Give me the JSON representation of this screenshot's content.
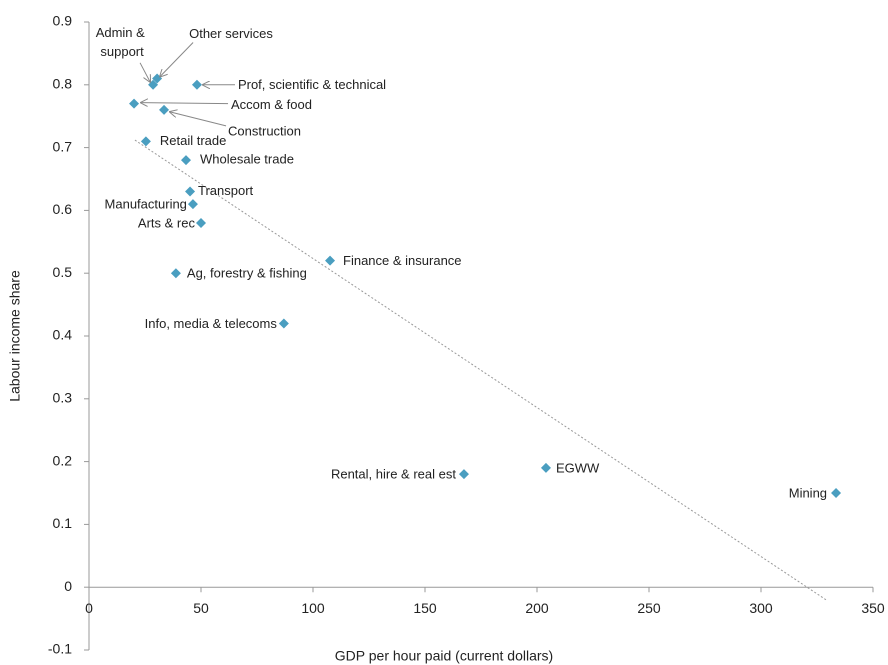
{
  "chart_data": {
    "type": "scatter",
    "x_label": "GDP per hour paid (current dollars)",
    "y_label": "Labour income share",
    "labels": [
      "Admin &\nsupport",
      "Other services",
      "Prof, scientific & technical",
      "Accom & food",
      "Construction",
      "Retail trade",
      "Wholesale trade",
      "Transport",
      "Manufacturing",
      "Arts & rec",
      "Ag, forestry & fishing",
      "Finance & insurance",
      "Info, media & telecoms",
      "Rental, hire & real est",
      "EGWW",
      "Mining"
    ],
    "x": [
      28.6,
      30.4,
      48.2,
      20.1,
      33.5,
      25.4,
      43.3,
      45.1,
      46.4,
      50,
      38.8,
      107.6,
      87,
      167.4,
      204,
      333.5
    ],
    "y": [
      0.8,
      0.81,
      0.8,
      0.77,
      0.76,
      0.71,
      0.68,
      0.63,
      0.61,
      0.58,
      0.5,
      0.52,
      0.42,
      0.18,
      0.19,
      0.15
    ],
    "color": "#4a9ec0",
    "trendline": {
      "x": [
        20.5,
        329
      ],
      "y": [
        0.712,
        -0.02
      ]
    },
    "xlim": [
      0,
      350
    ],
    "xticks": [
      0,
      50,
      100,
      150,
      200,
      250,
      300,
      350
    ],
    "ylim": [
      -0.1,
      0.9
    ],
    "yticks": [
      -0.1,
      0,
      0.1,
      0.2,
      0.3,
      0.4,
      0.5,
      0.6,
      0.7,
      0.8,
      0.9
    ],
    "grid": false
  }
}
